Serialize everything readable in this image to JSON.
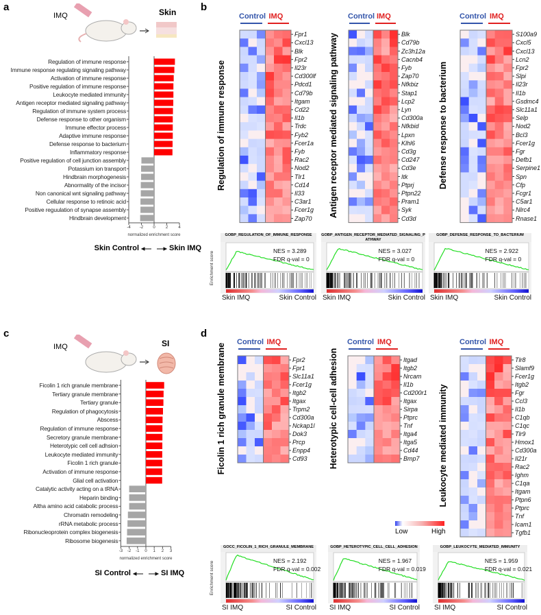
{
  "panels": {
    "a": "a",
    "b": "b",
    "c": "c",
    "d": "d"
  },
  "illustration_a": {
    "treatment": "IMQ",
    "tissue": "Skin"
  },
  "illustration_c": {
    "treatment": "IMQ",
    "tissue": "SI"
  },
  "chart_data": [
    {
      "type": "bar",
      "orientation": "horizontal",
      "id": "a",
      "xlabel": "normalized enrichment score",
      "xlim": [
        -4,
        4
      ],
      "xticks": [
        "-4",
        "-2",
        "0",
        "2",
        "4"
      ],
      "direction_left": "Skin Control",
      "direction_right": "Skin IMQ",
      "categories": [
        "Regulation of immune response",
        "Immune response regulating signaling pathway",
        "Activation of immune response",
        "Positive regulation of immune response",
        "Leukocyte mediated immunity",
        "Antigen receptor mediated signaling pathway",
        "Regulation of immune system process",
        "Defense response to other organism",
        "Immune effector process",
        "Adaptive immune response",
        "Defense response to bacterium",
        "Inflammatory response",
        "Positive regulation of cell junction assembly",
        "Potassium ion transport",
        "Hindbrain morphogenesis",
        "Abnormality of the incisor",
        "Non canonical wnt signaling pathway",
        "Cellular response to retinoic acid",
        "Positive reguulation of synapse assembly",
        "Hindbrain development"
      ],
      "values": [
        3.29,
        3.2,
        3.1,
        3.05,
        3.05,
        3.03,
        2.98,
        2.95,
        2.95,
        2.95,
        2.92,
        2.9,
        -2.0,
        -2.05,
        -2.05,
        -2.1,
        -2.1,
        -2.15,
        -2.15,
        -2.2
      ],
      "colors": {
        "up": "#ff0000",
        "down": "#a6a6a6"
      }
    },
    {
      "type": "bar",
      "orientation": "horizontal",
      "id": "c",
      "xlabel": "normalized enrichment score",
      "xlim": [
        -3,
        3
      ],
      "xticks": [
        "-3",
        "-2",
        "-1",
        "0",
        "1",
        "2",
        "3"
      ],
      "direction_left": "SI Control",
      "direction_right": "SI IMQ",
      "categories": [
        "Ficolin 1 rich granule membrane",
        "Tertiary granule membrane",
        "Tertiary granule",
        "Regulation of phagocytosis",
        "Abscess",
        "Regulation of immune response",
        "Secretory granule membrane",
        "Heterotypic cell cell adhsion",
        "Leukocyte mediated immunity",
        "Ficolin 1 rich granule",
        "Activation of immune response",
        "Glial cell activation",
        "Catalytic activity acting on a tRNA",
        "Heparin binding",
        "Altha amino acid catabolic process",
        "Chromatin remodeling",
        "rRNA metabolic process",
        "Ribonucleoprotein complex biogenesis",
        "Ribosome biogenesis"
      ],
      "values": [
        2.19,
        2.12,
        2.1,
        2.05,
        2.0,
        1.98,
        1.98,
        1.97,
        1.96,
        1.96,
        1.95,
        1.95,
        -2.0,
        -2.0,
        -2.0,
        -2.15,
        -2.2,
        -2.25,
        -2.3
      ],
      "colors": {
        "up": "#ff0000",
        "down": "#a6a6a6"
      }
    },
    {
      "type": "heatmap",
      "id": "b1",
      "title": "Regulation of immune response",
      "groups": [
        "Control",
        "IMQ"
      ],
      "genes": [
        "Fpr1",
        "Cxcl13",
        "Blk",
        "Fpr2",
        "Il23r",
        "Cd300lf",
        "Pdcd1",
        "Cd79b",
        "Itgam",
        "Cd22",
        "Il1b",
        "Trdc",
        "Fyb2",
        "Fcer1a",
        "Fyb",
        "Rac2",
        "Nod2",
        "Tlr1",
        "Cd14",
        "Il33",
        "C3ar1",
        "Fcer1g",
        "Zap70"
      ]
    },
    {
      "type": "heatmap",
      "id": "b2",
      "title": "Antigen receptor mediated signaling pathway",
      "groups": [
        "Control",
        "IMQ"
      ],
      "genes": [
        "Blk",
        "Cd79b",
        "Zc3h12a",
        "Cacnb4",
        "Fyb",
        "Zap70",
        "Nfkbiz",
        "Stap1",
        "Lcp2",
        "Lyn",
        "Cd300a",
        "Nfkbid",
        "Lpxn",
        "Klhl6",
        "Cd3g",
        "Cd247",
        "Cd3e",
        "Itk",
        "Ptprj",
        "Ptpn22",
        "Pram1",
        "Syk",
        "Cd3d"
      ]
    },
    {
      "type": "heatmap",
      "id": "b3",
      "title": "Defense response to bacterium",
      "groups": [
        "Control",
        "IMQ"
      ],
      "genes": [
        "S100a9",
        "Cxcl5",
        "Cxcl13",
        "Lcn2",
        "Fpr2",
        "Slpi",
        "Il23r",
        "Il1b",
        "Gsdmc4",
        "Slc11a1",
        "Selp",
        "Nod2",
        "Bcl3",
        "Fcer1g",
        "Fgr",
        "Defb1",
        "Serpine1",
        "Spn",
        "Cfp",
        "Fcgr1",
        "C5ar1",
        "Nlrc4",
        "Rnase1"
      ]
    },
    {
      "type": "heatmap",
      "id": "d1",
      "title": "Ficolin 1 rich granule membrane",
      "groups": [
        "Control",
        "IMQ"
      ],
      "genes": [
        "Fpr2",
        "Fpr1",
        "Slc11a1",
        "Fcer1g",
        "Itgb2",
        "Itgax",
        "Trpm2",
        "Cd300a",
        "Nckap1l",
        "Dok3",
        "Prcp",
        "Enpp4",
        "Cd93"
      ]
    },
    {
      "type": "heatmap",
      "id": "d2",
      "title": "Heterotypic cell-cell adhesion",
      "groups": [
        "Control",
        "IMQ"
      ],
      "genes": [
        "Itgad",
        "Itgb2",
        "Nrcam",
        "Il1b",
        "Cd200r1",
        "Itgax",
        "Sirpa",
        "Ptprc",
        "Tnf",
        "Itga4",
        "Itga5",
        "Cd44",
        "Bmp7"
      ]
    },
    {
      "type": "heatmap",
      "id": "d3",
      "title": "Leukocyte mediated immunity",
      "groups": [
        "Control",
        "IMQ"
      ],
      "genes": [
        "Tlr8",
        "Slamf9",
        "Fcer1g",
        "Itgb2",
        "Fgr",
        "Ccl3",
        "Il1b",
        "C1qb",
        "C1qc",
        "Tlr9",
        "Hmox1",
        "Cd300a",
        "Il21r",
        "Rac2",
        "Ighm",
        "C1qa",
        "Itgam",
        "Ptpn6",
        "Ptprc",
        "Tnf",
        "Icam1",
        "Tgfb1"
      ]
    },
    {
      "type": "line",
      "id": "gsea_b1",
      "title": "GOBP_REGULATION_OF_IMMUNE_RESPONSE",
      "nes": "NES = 3.289",
      "fdr": "FDR q-val = 0",
      "left": "Skin IMQ",
      "right": "Skin Control",
      "ylabel": "Enrichment score",
      "peak": 0.6
    },
    {
      "type": "line",
      "id": "gsea_b2",
      "title": "GOBP_ANTIGEN_RECEPTOR_MEDIATED_SIGNALING_P ATHWAY",
      "nes": "NES = 3.027",
      "fdr": "FDR q-val = 0",
      "left": "Skin IMQ",
      "right": "Skin Control",
      "peak": 0.7
    },
    {
      "type": "line",
      "id": "gsea_b3",
      "title": "GOBP_DEFENSE_RESPONSE_TO_BACTERIUM",
      "nes": "NES = 2.922",
      "fdr": "FDR q-val = 0",
      "left": "Skin IMQ",
      "right": "Skin Control",
      "peak": 0.7
    },
    {
      "type": "line",
      "id": "gsea_d1",
      "title": "GOCC_FICOLIN_1_RICH_GRANULE_MEMBRANE",
      "nes": "NES = 2.192",
      "fdr": "FDR q-val = 0.002",
      "left": "SI IMQ",
      "right": "SI Control",
      "ylabel": "Enrichment score",
      "peak": 0.8
    },
    {
      "type": "line",
      "id": "gsea_d2",
      "title": "GOBP_HETEROTYPIC_CELL_CELL_ADHESION",
      "nes": "NES = 1.967",
      "fdr": "FDR q-val = 0.019",
      "left": "SI IMQ",
      "right": "SI Control",
      "peak": 0.7
    },
    {
      "type": "line",
      "id": "gsea_d3",
      "title": "GOBP_LEUKOCYTE_MEDIATED_IMMUNITY",
      "nes": "NES = 1.959",
      "fdr": "FDR q-val = 0.021",
      "left": "SI IMQ",
      "right": "SI Control",
      "peak": 0.6
    }
  ],
  "legend": {
    "low": "Low",
    "high": "High"
  }
}
